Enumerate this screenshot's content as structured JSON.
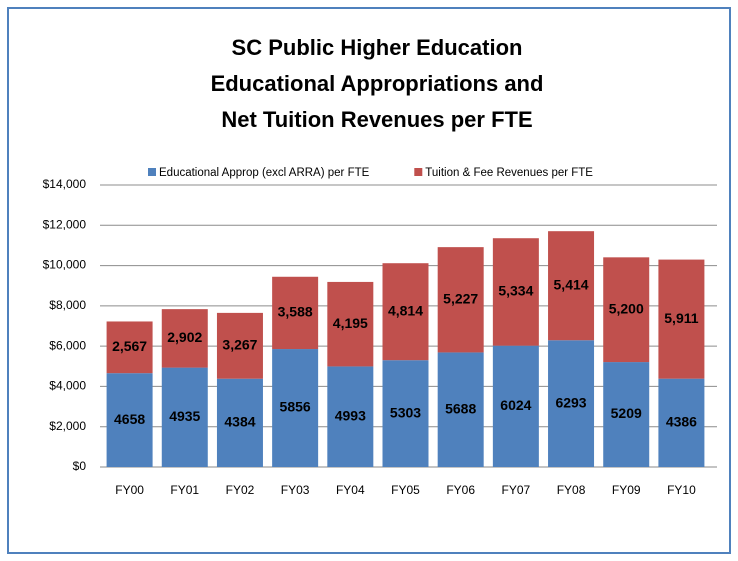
{
  "chart_data": {
    "type": "stacked_bar",
    "title": [
      "SC Public Higher Education",
      "Educational Appropriations and",
      "Net Tuition Revenues per FTE"
    ],
    "categories": [
      "FY00",
      "FY01",
      "FY02",
      "FY03",
      "FY04",
      "FY05",
      "FY06",
      "FY07",
      "FY08",
      "FY09",
      "FY10"
    ],
    "series": [
      {
        "name": "Educational Approp (excl ARRA)  per FTE",
        "color": "#4f81bd",
        "values": [
          4658,
          4935,
          4384,
          5856,
          4993,
          5303,
          5688,
          6024,
          6293,
          5209,
          4386
        ]
      },
      {
        "name": "Tuition & Fee Revenues per FTE",
        "color": "#c0504d",
        "values": [
          2567,
          2902,
          3267,
          3588,
          4195,
          4814,
          5227,
          5334,
          5414,
          5200,
          5911
        ],
        "value_labels": [
          "2,567",
          "2,902",
          "3,267",
          "3,588",
          "4,195",
          "4,814",
          "5,227",
          "5,334",
          "5,414",
          "5,200",
          "5,911"
        ]
      }
    ],
    "ylim": [
      0,
      14000
    ],
    "yticks": [
      {
        "value": 0,
        "label": "$0"
      },
      {
        "value": 2000,
        "label": "$2,000"
      },
      {
        "value": 4000,
        "label": "$4,000"
      },
      {
        "value": 6000,
        "label": "$6,000"
      },
      {
        "value": 8000,
        "label": "$8,000"
      },
      {
        "value": 10000,
        "label": "$10,000"
      },
      {
        "value": 12000,
        "label": "$12,000"
      },
      {
        "value": 14000,
        "label": "$14,000"
      }
    ],
    "grid": true,
    "legend": "top"
  }
}
